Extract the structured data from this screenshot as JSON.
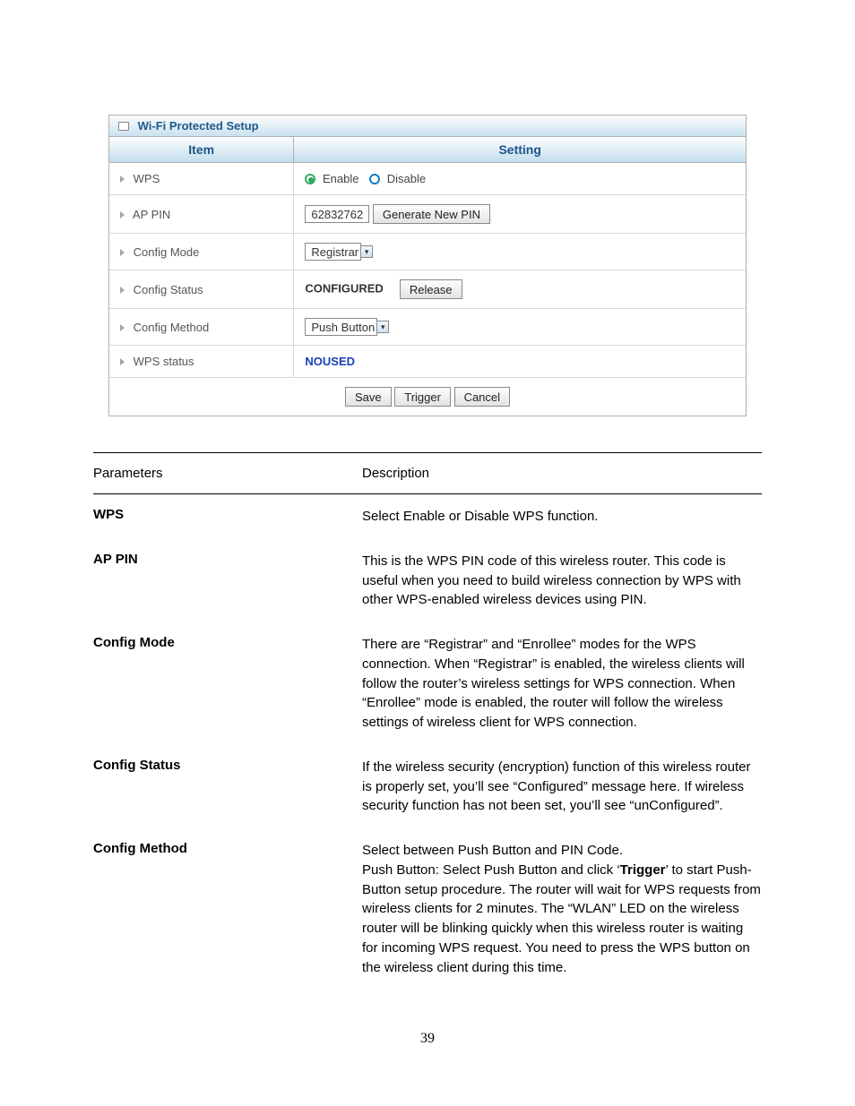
{
  "panel": {
    "title": "Wi-Fi Protected Setup",
    "headers": {
      "item": "Item",
      "setting": "Setting"
    },
    "rows": {
      "wps": {
        "label": "WPS",
        "enable_label": "Enable",
        "disable_label": "Disable",
        "selected": "enable"
      },
      "ap_pin": {
        "label": "AP PIN",
        "value": "62832762",
        "button": "Generate New PIN"
      },
      "config_mode": {
        "label": "Config Mode",
        "value": "Registrar"
      },
      "config_status": {
        "label": "Config Status",
        "value": "CONFIGURED",
        "button": "Release"
      },
      "config_method": {
        "label": "Config Method",
        "value": "Push Button"
      },
      "wps_status": {
        "label": "WPS status",
        "value": "NOUSED"
      }
    },
    "footer": {
      "save": "Save",
      "trigger": "Trigger",
      "cancel": "Cancel"
    }
  },
  "doc": {
    "headers": {
      "param": "Parameters",
      "desc": "Description"
    },
    "rows": [
      {
        "param": "WPS",
        "desc": "Select Enable or Disable WPS function."
      },
      {
        "param": "AP PIN",
        "desc": "This is the WPS PIN code of this wireless router. This code is useful when you need to build wireless connection by WPS with other WPS-enabled wireless devices using PIN."
      },
      {
        "param": "Config Mode",
        "desc": "There are “Registrar” and “Enrollee” modes for the WPS connection. When “Registrar” is enabled, the wireless clients will follow the router’s wireless settings for WPS connection. When “Enrollee” mode is enabled, the router will follow the wireless settings of wireless client for WPS connection."
      },
      {
        "param": "Config Status",
        "desc": "If the wireless security (encryption) function of this wireless router is properly set, you’ll see “Configured” message here. If wireless security function has not been set, you’ll see “unConfigured”."
      },
      {
        "param": "Config Method",
        "desc_pre": "Select between Push Button and PIN Code.\nPush Button: Select Push Button and click ‘",
        "desc_bold": "Trigger",
        "desc_post": "’ to start Push-Button setup procedure. The router will wait for WPS requests from wireless clients for 2 minutes. The “WLAN” LED on the wireless router will be blinking quickly when this wireless router is waiting for incoming WPS request. You need to press the WPS button on the wireless client during this time."
      }
    ]
  },
  "page_number": "39",
  "colors": {
    "header_gradient_top": "#fdfefe",
    "header_gradient_bottom": "#c3ddee",
    "header_text": "#1c548a",
    "border": "#b0b0b0",
    "row_border": "#d8d8d8",
    "status_blue": "#1a3fb5"
  }
}
